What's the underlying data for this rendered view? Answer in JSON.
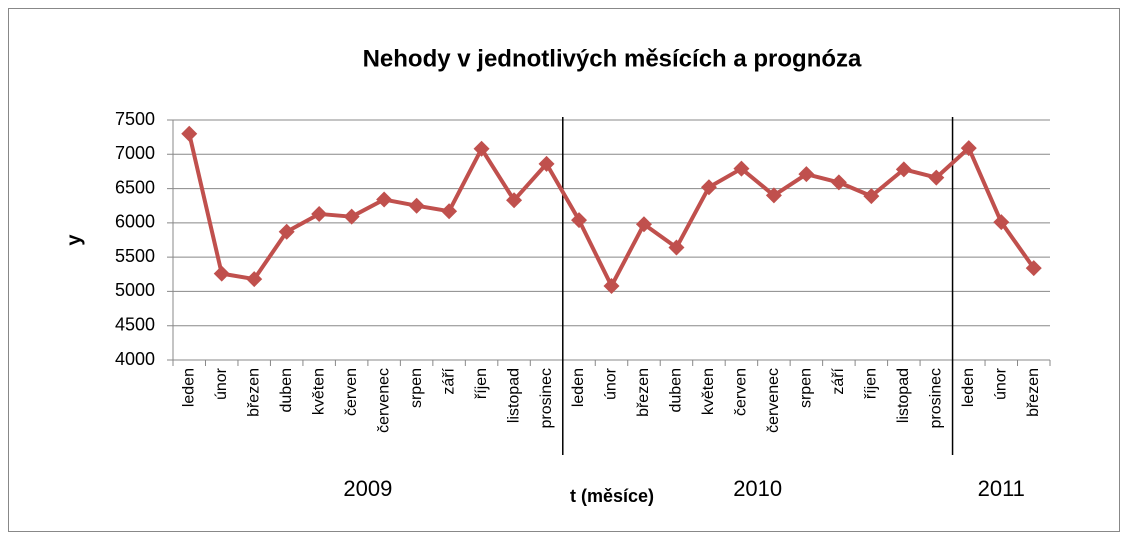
{
  "chart_data": {
    "type": "line",
    "title": "Nehody v jednotlivých měsících a prognóza",
    "y_label": "y",
    "x_label": "t (měsíce)",
    "categories": [
      "leden",
      "únor",
      "březen",
      "duben",
      "květen",
      "červen",
      "červenec",
      "srpen",
      "září",
      "říjen",
      "listopad",
      "prosinec",
      "leden",
      "únor",
      "březen",
      "duben",
      "květen",
      "červen",
      "červenec",
      "srpen",
      "září",
      "říjen",
      "listopad",
      "prosinec",
      "leden",
      "únor",
      "březen"
    ],
    "groups": [
      "2009",
      "2010",
      "2011"
    ],
    "series": [
      {
        "name": "y",
        "color": "#c0504d",
        "values": [
          7300,
          5260,
          5180,
          5870,
          6130,
          6090,
          6340,
          6250,
          6170,
          7080,
          6330,
          6860,
          6040,
          5080,
          5980,
          5640,
          6520,
          6790,
          6400,
          6710,
          6590,
          6390,
          6780,
          6660,
          7090,
          6010,
          5340
        ]
      }
    ],
    "ylim": [
      4000,
      7500
    ],
    "yticks": [
      4000,
      4500,
      5000,
      5500,
      6000,
      6500,
      7000,
      7500
    ],
    "grid": true
  }
}
